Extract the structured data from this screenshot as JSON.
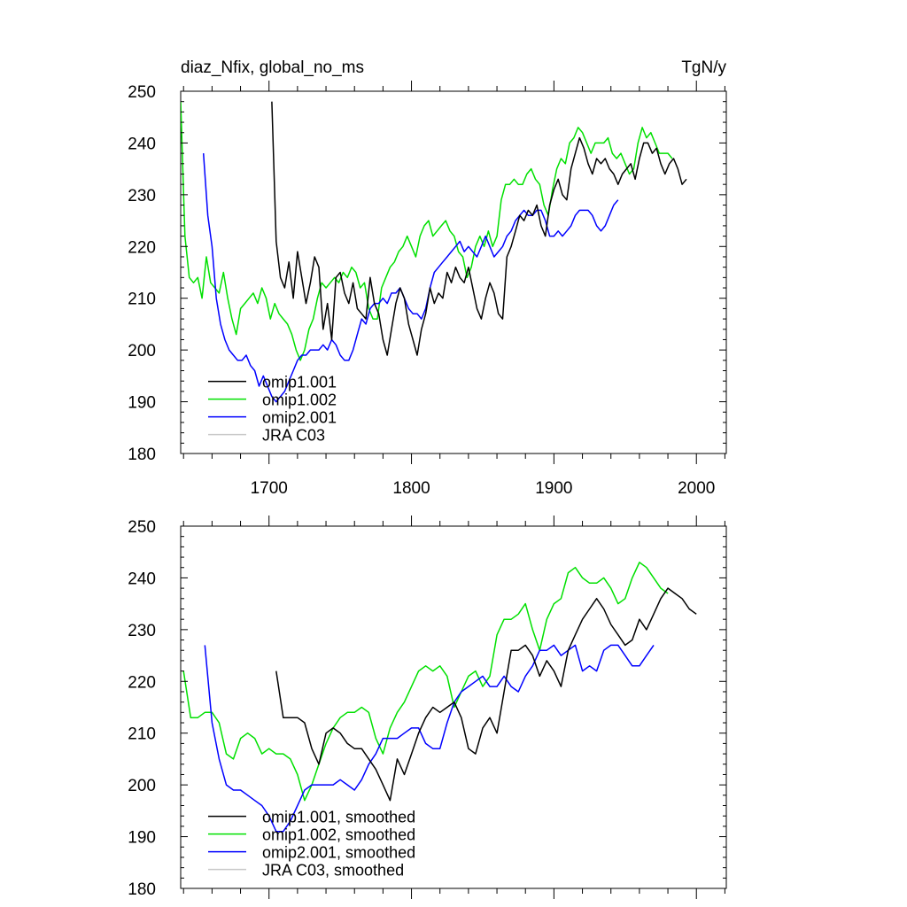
{
  "chart_data": [
    {
      "type": "line",
      "title": "diaz_Nfix, global_no_ms",
      "units": "TgN/y",
      "xlim": [
        1638,
        2021
      ],
      "ylim": [
        180,
        250
      ],
      "x_ticks": [
        1700,
        1800,
        1900,
        2000
      ],
      "x_tick_labels": [
        "1700",
        "1800",
        "1900",
        "2000"
      ],
      "y_ticks": [
        180,
        190,
        200,
        210,
        220,
        230,
        240,
        250
      ],
      "y_tick_labels": [
        "180",
        "190",
        "200",
        "210",
        "220",
        "230",
        "240",
        "250"
      ],
      "legend_position": "bottom-left",
      "legend": [
        "omip1.001",
        "omip1.002",
        "omip2.001",
        "JRA C03"
      ],
      "series": [
        {
          "name": "omip1.001",
          "color": "#000000",
          "x_start": 1702,
          "x_step": 3,
          "values": [
            248,
            221,
            214,
            212,
            217,
            210,
            219,
            214,
            209,
            213,
            218,
            216,
            204,
            209,
            202,
            214,
            215,
            211,
            209,
            213,
            208,
            207,
            206,
            214,
            209,
            207,
            202,
            199,
            204,
            209,
            212,
            210,
            205,
            202,
            199,
            204,
            207,
            212,
            209,
            211,
            210,
            215,
            213,
            216,
            214,
            213,
            216,
            212,
            208,
            206,
            210,
            213,
            211,
            207,
            206,
            218,
            220,
            223,
            226,
            225,
            227,
            226,
            228,
            224,
            222,
            228,
            231,
            233,
            230,
            229,
            235,
            238,
            241,
            239,
            236,
            234,
            237,
            236,
            237,
            235,
            234,
            232,
            234,
            235,
            236,
            233,
            237,
            240,
            240,
            238,
            239,
            236,
            234,
            236,
            237,
            235,
            232,
            233
          ]
        },
        {
          "name": "omip1.002",
          "color": "#00e000",
          "x_start": 1638,
          "x_step": 3,
          "values": [
            248,
            222,
            214,
            213,
            214,
            210,
            218,
            213,
            212,
            211,
            215,
            210,
            206,
            203,
            208,
            209,
            210,
            211,
            209,
            212,
            210,
            206,
            209,
            207,
            206,
            205,
            203,
            200,
            198,
            200,
            204,
            206,
            210,
            213,
            212,
            213,
            214,
            213,
            215,
            214,
            216,
            215,
            212,
            213,
            208,
            206,
            206,
            212,
            214,
            216,
            217,
            219,
            220,
            222,
            220,
            218,
            222,
            224,
            225,
            222,
            223,
            224,
            225,
            223,
            222,
            219,
            218,
            214,
            216,
            220,
            222,
            220,
            223,
            220,
            222,
            229,
            232,
            232,
            233,
            232,
            232,
            234,
            235,
            233,
            232,
            228,
            226,
            231,
            235,
            237,
            236,
            240,
            241,
            243,
            242,
            240,
            238,
            240,
            240,
            240,
            241,
            238,
            237,
            238,
            236,
            234,
            235,
            240,
            243,
            241,
            242,
            240,
            238,
            238,
            238,
            237
          ]
        },
        {
          "name": "omip2.001",
          "color": "#0000ff",
          "x_start": 1654,
          "x_step": 3,
          "values": [
            238,
            226,
            220,
            210,
            205,
            202,
            200,
            199,
            198,
            198,
            199,
            197,
            196,
            193,
            195,
            193,
            191,
            190,
            191,
            192,
            194,
            196,
            198,
            199,
            199,
            200,
            200,
            200,
            201,
            200,
            202,
            201,
            199,
            198,
            198,
            200,
            203,
            206,
            205,
            208,
            209,
            209,
            210,
            209,
            211,
            211,
            212,
            210,
            208,
            207,
            207,
            206,
            208,
            212,
            215,
            216,
            217,
            218,
            219,
            220,
            221,
            219,
            220,
            219,
            218,
            220,
            222,
            220,
            218,
            219,
            220,
            222,
            223,
            225,
            226,
            227,
            226,
            226,
            227,
            227,
            225,
            222,
            222,
            223,
            222,
            223,
            224,
            226,
            227,
            227,
            227,
            226,
            224,
            223,
            224,
            226,
            228,
            229
          ]
        },
        {
          "name": "JRA C03",
          "color": "#c8c8c8",
          "x_start": 1638,
          "x_step": 3,
          "values": []
        }
      ]
    },
    {
      "type": "line",
      "title": "",
      "units": "",
      "xlim": [
        1638,
        2021
      ],
      "ylim": [
        180,
        250
      ],
      "x_ticks": [
        1700,
        1800,
        1900,
        2000
      ],
      "x_tick_labels": [
        "",
        "",
        "",
        ""
      ],
      "y_ticks": [
        180,
        190,
        200,
        210,
        220,
        230,
        240,
        250
      ],
      "y_tick_labels": [
        "180",
        "190",
        "200",
        "210",
        "220",
        "230",
        "240",
        "250"
      ],
      "legend_position": "bottom-left",
      "legend": [
        "omip1.001, smoothed",
        "omip1.002, smoothed",
        "omip2.001, smoothed",
        "JRA C03, smoothed"
      ],
      "series": [
        {
          "name": "omip1.001, smoothed",
          "color": "#000000",
          "x_start": 1705,
          "x_step": 5,
          "values": [
            222,
            213,
            213,
            213,
            212,
            207,
            204,
            210,
            211,
            210,
            208,
            207,
            207,
            205,
            203,
            200,
            197,
            205,
            202,
            206,
            210,
            213,
            215,
            214,
            215,
            216,
            213,
            207,
            206,
            211,
            213,
            210,
            218,
            226,
            226,
            227,
            225,
            221,
            224,
            222,
            219,
            226,
            229,
            232,
            234,
            236,
            234,
            231,
            229,
            227,
            228,
            232,
            230,
            233,
            236,
            238,
            237,
            236,
            234,
            233
          ]
        },
        {
          "name": "omip1.002, smoothed",
          "color": "#00e000",
          "x_start": 1640,
          "x_step": 5,
          "values": [
            222,
            213,
            213,
            214,
            214,
            212,
            206,
            205,
            209,
            210,
            209,
            206,
            207,
            206,
            206,
            205,
            202,
            197,
            200,
            204,
            208,
            211,
            213,
            214,
            214,
            215,
            214,
            209,
            206,
            211,
            214,
            216,
            219,
            222,
            223,
            222,
            223,
            221,
            215,
            218,
            221,
            222,
            219,
            221,
            229,
            232,
            232,
            233,
            235,
            230,
            226,
            232,
            235,
            236,
            241,
            242,
            240,
            239,
            239,
            240,
            238,
            235,
            236,
            240,
            243,
            242,
            240,
            238,
            237
          ]
        },
        {
          "name": "omip2.001, smoothed",
          "color": "#0000ff",
          "x_start": 1655,
          "x_step": 5,
          "values": [
            227,
            212,
            205,
            200,
            199,
            199,
            198,
            197,
            196,
            194,
            191,
            191,
            193,
            196,
            199,
            200,
            200,
            200,
            200,
            201,
            200,
            199,
            201,
            204,
            206,
            209,
            209,
            209,
            210,
            211,
            211,
            208,
            207,
            207,
            212,
            216,
            218,
            219,
            220,
            221,
            219,
            219,
            221,
            219,
            218,
            221,
            223,
            226,
            226,
            227,
            225,
            226,
            227,
            222,
            223,
            222,
            226,
            227,
            227,
            225,
            223,
            223,
            225,
            227
          ]
        },
        {
          "name": "JRA C03, smoothed",
          "color": "#c8c8c8",
          "x_start": 1638,
          "x_step": 5,
          "values": []
        }
      ]
    }
  ]
}
